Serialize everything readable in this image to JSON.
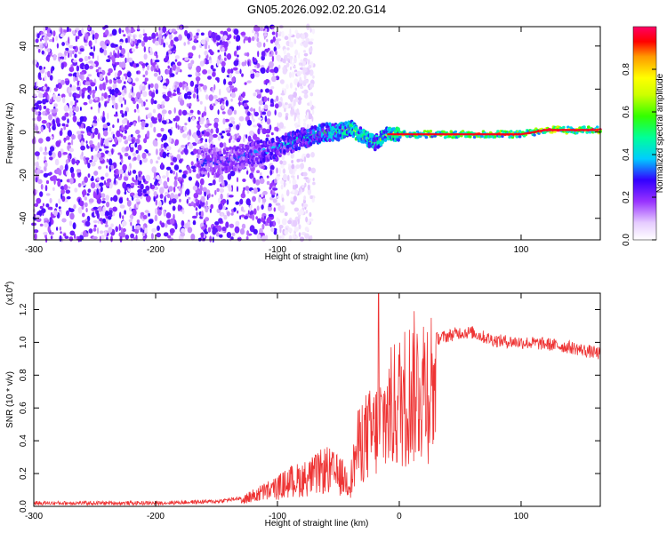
{
  "title": "GN05.2026.092.02.20.G14",
  "colors": {
    "snr_line": "#ee3333",
    "axis": "#000000"
  },
  "chart_data": [
    {
      "type": "heatmap",
      "xlabel": "Height of straight line (km)",
      "ylabel": "Frequency (Hz)",
      "xlim": [
        -300,
        165
      ],
      "ylim": [
        -50,
        49
      ],
      "xticks": [
        -300,
        -200,
        -100,
        0,
        100
      ],
      "yticks": [
        -40,
        -20,
        0,
        20,
        40
      ],
      "colorbar": {
        "label": "Normalized spectral amplitude",
        "range": [
          0,
          1
        ],
        "ticks": [
          "0.0",
          "0.2",
          "0.4",
          "0.6",
          "0.8"
        ],
        "tick_values": [
          0,
          0.2,
          0.4,
          0.6,
          0.8
        ]
      },
      "ridge": [
        [
          -160,
          -14,
          0.3
        ],
        [
          -140,
          -13,
          0.3
        ],
        [
          -120,
          -10,
          0.35
        ],
        [
          -100,
          -7,
          0.4
        ],
        [
          -80,
          -3,
          0.45
        ],
        [
          -60,
          0,
          0.55
        ],
        [
          -50,
          0,
          0.6
        ],
        [
          -40,
          2,
          0.75
        ],
        [
          -30,
          -2,
          0.7
        ],
        [
          -20,
          -5,
          0.6
        ],
        [
          -10,
          -1,
          0.7
        ],
        [
          0,
          -1,
          0.8
        ],
        [
          20,
          -1,
          0.85
        ],
        [
          40,
          -1,
          0.85
        ],
        [
          60,
          -1,
          0.9
        ],
        [
          80,
          -1,
          0.9
        ],
        [
          100,
          -1,
          0.9
        ],
        [
          110,
          0,
          0.9
        ],
        [
          120,
          1,
          1.0
        ],
        [
          140,
          1,
          1.0
        ],
        [
          165,
          1,
          1.0
        ]
      ],
      "noise_region_xmax": -100
    },
    {
      "type": "line",
      "xlabel": "Height of straight line (km)",
      "ylabel": "SNR (10 * v/v)",
      "yscale_label": "(x10",
      "yscale_exp": "4",
      "yscale_close": ")",
      "xlim": [
        -300,
        165
      ],
      "ylim": [
        0,
        1.3
      ],
      "xticks": [
        -300,
        -200,
        -100,
        0,
        100
      ],
      "yticks": [
        "0.0",
        "0.2",
        "0.4",
        "0.6",
        "0.8",
        "1.0",
        "1.2"
      ],
      "ytick_values": [
        0,
        0.2,
        0.4,
        0.6,
        0.8,
        1.0,
        1.2
      ],
      "envelope": [
        [
          -300,
          0.02
        ],
        [
          -200,
          0.02
        ],
        [
          -150,
          0.03
        ],
        [
          -130,
          0.05
        ],
        [
          -110,
          0.12
        ],
        [
          -100,
          0.15
        ],
        [
          -90,
          0.2
        ],
        [
          -80,
          0.22
        ],
        [
          -70,
          0.25
        ],
        [
          -60,
          0.3
        ],
        [
          -50,
          0.25
        ],
        [
          -40,
          0.2
        ],
        [
          -35,
          0.45
        ],
        [
          -30,
          0.55
        ],
        [
          -20,
          0.6
        ],
        [
          -10,
          0.75
        ],
        [
          0,
          0.85
        ],
        [
          10,
          0.95
        ],
        [
          20,
          1.0
        ],
        [
          30,
          1.02
        ],
        [
          40,
          1.04
        ],
        [
          50,
          1.06
        ],
        [
          60,
          1.06
        ],
        [
          70,
          1.03
        ],
        [
          80,
          1.01
        ],
        [
          100,
          1.0
        ],
        [
          120,
          0.99
        ],
        [
          140,
          0.97
        ],
        [
          165,
          0.93
        ]
      ]
    }
  ]
}
